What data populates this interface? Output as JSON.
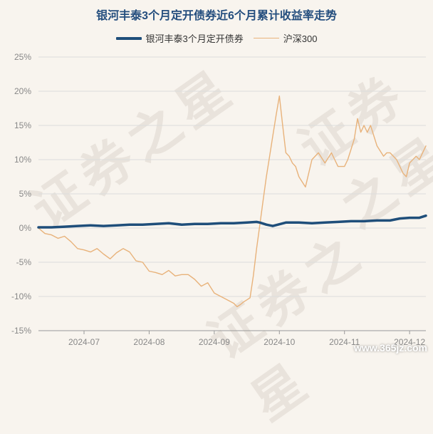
{
  "watermark": "证券之星",
  "footer": "www.365jz.com",
  "chart_data": {
    "type": "line",
    "title": "银河丰泰3个月定开债券近6个月累计收益率走势",
    "xlabel": "",
    "ylabel": "",
    "ylim": [
      -15,
      25
    ],
    "yticks": [
      "25%",
      "20%",
      "15%",
      "10%",
      "5%",
      "0%",
      "-5%",
      "-10%",
      "-15%"
    ],
    "ytick_values": [
      25,
      20,
      15,
      10,
      5,
      0,
      -5,
      -10,
      -15
    ],
    "xticks": [
      "2024-07",
      "2024-08",
      "2024-09",
      "2024-10",
      "2024-11",
      "2024-12"
    ],
    "xtick_positions": [
      14,
      34,
      54,
      74,
      94,
      114
    ],
    "xlim": [
      0,
      119
    ],
    "grid": true,
    "legend_position": "top",
    "series": [
      {
        "name": "银河丰泰3个月定开债券",
        "color": "#1f4e7a",
        "x": [
          0,
          4,
          8,
          12,
          16,
          20,
          24,
          28,
          32,
          36,
          40,
          44,
          48,
          52,
          56,
          60,
          64,
          67,
          68,
          70,
          72,
          76,
          80,
          84,
          88,
          92,
          96,
          100,
          104,
          108,
          111,
          114,
          117,
          119
        ],
        "values": [
          0.1,
          0.1,
          0.2,
          0.3,
          0.4,
          0.3,
          0.4,
          0.5,
          0.5,
          0.6,
          0.7,
          0.5,
          0.6,
          0.6,
          0.7,
          0.7,
          0.8,
          0.9,
          0.8,
          0.5,
          0.3,
          0.8,
          0.8,
          0.7,
          0.8,
          0.9,
          1.0,
          1.0,
          1.1,
          1.1,
          1.4,
          1.5,
          1.5,
          1.8
        ]
      },
      {
        "name": "沪深300",
        "color": "#e8b27a",
        "x": [
          0,
          2,
          4,
          6,
          8,
          10,
          12,
          14,
          16,
          18,
          20,
          22,
          24,
          26,
          28,
          30,
          32,
          34,
          36,
          38,
          40,
          42,
          44,
          46,
          48,
          50,
          52,
          54,
          56,
          58,
          60,
          61,
          62,
          63,
          64,
          65,
          66,
          67,
          68,
          69,
          70,
          71,
          72,
          73,
          74,
          75,
          76,
          77,
          78,
          79,
          80,
          82,
          84,
          86,
          88,
          90,
          91,
          92,
          94,
          95,
          96,
          97,
          98,
          99,
          100,
          101,
          102,
          104,
          106,
          107,
          108,
          110,
          112,
          113,
          114,
          116,
          117,
          118,
          119
        ],
        "values": [
          0.0,
          -0.8,
          -1.0,
          -1.5,
          -1.2,
          -2.0,
          -3.0,
          -3.2,
          -3.5,
          -3.0,
          -3.8,
          -4.5,
          -3.6,
          -3.0,
          -3.5,
          -4.8,
          -5.0,
          -6.3,
          -6.5,
          -6.8,
          -6.2,
          -7.0,
          -6.8,
          -6.8,
          -7.5,
          -8.5,
          -8.0,
          -9.5,
          -10.0,
          -10.5,
          -11.0,
          -11.5,
          -11.2,
          -10.8,
          -10.5,
          -10.2,
          -7.0,
          -3.0,
          0.5,
          4.0,
          7.5,
          10.5,
          13.5,
          16.5,
          19.3,
          15.0,
          11.0,
          10.5,
          9.5,
          9.0,
          7.5,
          6.0,
          10.0,
          11.0,
          9.5,
          11.0,
          10.0,
          9.0,
          9.0,
          10.0,
          11.5,
          13.0,
          16.0,
          14.0,
          15.0,
          14.0,
          15.0,
          12.0,
          10.5,
          11.0,
          11.0,
          10.0,
          8.0,
          7.5,
          9.5,
          10.5,
          10.0,
          11.0,
          12.0
        ]
      }
    ]
  }
}
